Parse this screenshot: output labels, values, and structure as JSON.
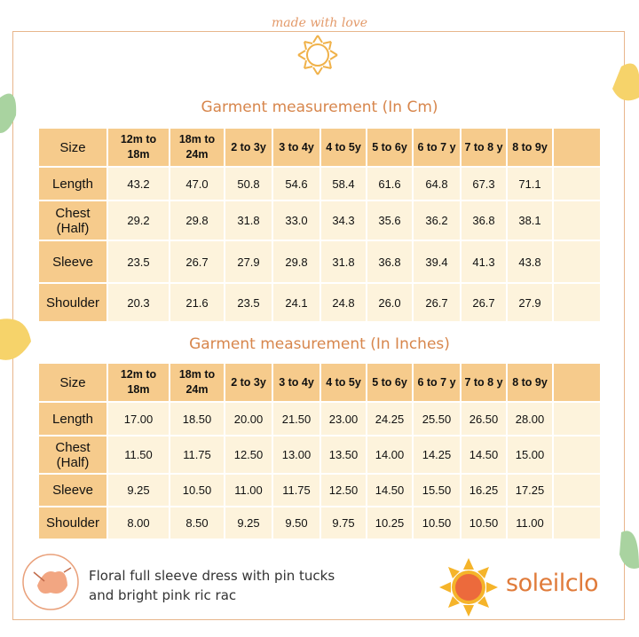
{
  "header": {
    "logo_text": "made with love"
  },
  "tables": [
    {
      "title": "Garment measurement  (In Cm)",
      "columns": [
        "Size",
        "12m to 18m",
        "18m to 24m",
        "2 to 3y",
        "3 to 4y",
        "4 to 5y",
        "5 to 6y",
        "6 to 7 y",
        "7 to 8 y",
        "8 to 9y"
      ],
      "rows": [
        [
          "Length",
          "43.2",
          "47.0",
          "50.8",
          "54.6",
          "58.4",
          "61.6",
          "64.8",
          "67.3",
          "71.1"
        ],
        [
          "Chest (Half)",
          "29.2",
          "29.8",
          "31.8",
          "33.0",
          "34.3",
          "35.6",
          "36.2",
          "36.8",
          "38.1"
        ],
        [
          "Sleeve",
          "23.5",
          "26.7",
          "27.9",
          "29.8",
          "31.8",
          "36.8",
          "39.4",
          "41.3",
          "43.8"
        ],
        [
          "Shoulder",
          "20.3",
          "21.6",
          "23.5",
          "24.1",
          "24.8",
          "26.0",
          "26.7",
          "26.7",
          "27.9"
        ]
      ]
    },
    {
      "title": "Garment measurement  (In Inches)",
      "columns": [
        "Size",
        "12m to 18m",
        "18m to 24m",
        "2 to 3y",
        "3 to 4y",
        "4 to 5y",
        "5 to 6y",
        "6 to 7 y",
        "7 to 8 y",
        "8 to 9y"
      ],
      "rows": [
        [
          "Length",
          "17.00",
          "18.50",
          "20.00",
          "21.50",
          "23.00",
          "24.25",
          "25.50",
          "26.50",
          "28.00"
        ],
        [
          "Chest (Half)",
          "11.50",
          "11.75",
          "12.50",
          "13.00",
          "13.50",
          "14.00",
          "14.25",
          "14.50",
          "15.00"
        ],
        [
          "Sleeve",
          "9.25",
          "10.50",
          "11.00",
          "11.75",
          "12.50",
          "14.50",
          "15.50",
          "16.25",
          "17.25"
        ],
        [
          "Shoulder",
          "8.00",
          "8.50",
          "9.25",
          "9.50",
          "9.75",
          "10.25",
          "10.50",
          "10.50",
          "11.00"
        ]
      ]
    }
  ],
  "footer": {
    "description": [
      "Floral full sleeve dress with pin tucks",
      "and bright pink ric rac"
    ],
    "brand": "soleilclo"
  }
}
